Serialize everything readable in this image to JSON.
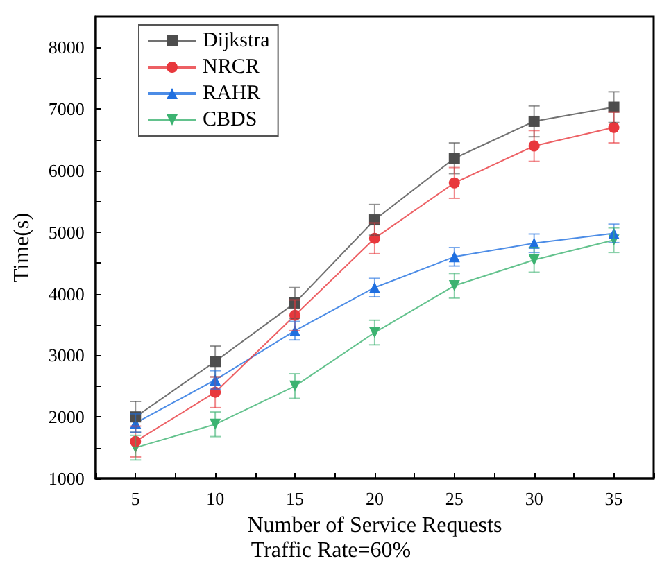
{
  "chart_data": {
    "type": "line",
    "xlabel": "Number of Service Requests",
    "ylabel": "Time(s)",
    "annotations": [
      "Traffic Rate=60%"
    ],
    "x": [
      5,
      10,
      15,
      20,
      25,
      30,
      35
    ],
    "xlim": [
      2.5,
      37.5
    ],
    "xticks": [
      {
        "value": 2.5,
        "label": null
      },
      5,
      {
        "value": 7.5,
        "label": null
      },
      10,
      {
        "value": 12.5,
        "label": null
      },
      15,
      {
        "value": 17.5,
        "label": null
      },
      20,
      {
        "value": 22.5,
        "label": null
      },
      25,
      {
        "value": 27.5,
        "label": null
      },
      30,
      {
        "value": 32.5,
        "label": null
      },
      35,
      {
        "value": 37.5,
        "label": null
      }
    ],
    "ylim": [
      1000,
      8500
    ],
    "yticks": [
      1000,
      {
        "value": 1500,
        "label": null
      },
      2000,
      {
        "value": 2500,
        "label": null
      },
      3000,
      {
        "value": 3500,
        "label": null
      },
      4000,
      {
        "value": 4500,
        "label": null
      },
      5000,
      {
        "value": 5500,
        "label": null
      },
      6000,
      {
        "value": 6500,
        "label": null
      },
      7000,
      {
        "value": 7500,
        "label": null
      },
      8000
    ],
    "grid": false,
    "legend": "top left",
    "line_style": "solid",
    "series": [
      {
        "name": "Dijkstra",
        "color": "#4d4d4d",
        "marker": "square",
        "values": [
          2000,
          2900,
          3850,
          5200,
          6200,
          6800,
          7030
        ],
        "errors": [
          250,
          250,
          250,
          250,
          250,
          250,
          250
        ]
      },
      {
        "name": "NRCR",
        "color": "#e8383d",
        "marker": "circle",
        "values": [
          1600,
          2400,
          3650,
          4900,
          5800,
          6400,
          6700
        ],
        "errors": [
          250,
          250,
          250,
          250,
          250,
          250,
          250
        ]
      },
      {
        "name": "RAHR",
        "color": "#1f6fe0",
        "marker": "triangle",
        "values": [
          1900,
          2600,
          3400,
          4100,
          4600,
          4820,
          4980
        ],
        "errors": [
          150,
          150,
          150,
          150,
          150,
          150,
          150
        ]
      },
      {
        "name": "CBDS",
        "color": "#3cb371",
        "marker": "triangle-down",
        "values": [
          1500,
          1880,
          2500,
          3370,
          4130,
          4550,
          4870
        ],
        "errors": [
          200,
          200,
          200,
          200,
          200,
          200,
          200
        ]
      }
    ]
  }
}
